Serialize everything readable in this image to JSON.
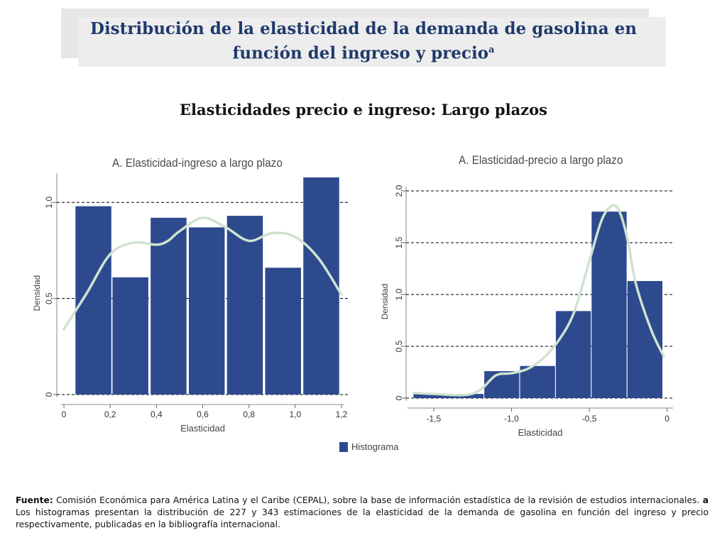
{
  "header": {
    "title": "Distribución de la elasticidad de la demanda de gasolina en función del ingreso y precio",
    "title_sup": "a",
    "subtitle": "Elasticidades precio e ingreso: Largo plazos"
  },
  "colors": {
    "bar": "#2e4a8f",
    "curve": "#cfe3cf",
    "grid": "#000000"
  },
  "chart_data": [
    {
      "type": "bar",
      "title": "A. Elasticidad-ingreso a largo plazo",
      "xlabel": "Elasticidad",
      "ylabel": "Densidad",
      "xlim": [
        0,
        1.2
      ],
      "ylim": [
        0,
        1.1
      ],
      "xticks": [
        0,
        0.2,
        0.4,
        0.6,
        0.8,
        1.0,
        1.2
      ],
      "xtick_labels": [
        "0",
        "0,2",
        "0,4",
        "0,6",
        "0,8",
        "1,0",
        "1,2"
      ],
      "yticks": [
        0,
        0.5,
        1.0
      ],
      "ytick_labels": [
        "0",
        "0,5",
        "1,0"
      ],
      "gridlines_y": [
        0,
        0.5,
        1.0
      ],
      "bins": [
        {
          "x0": 0.05,
          "x1": 0.205,
          "value": 0.98
        },
        {
          "x0": 0.21,
          "x1": 0.365,
          "value": 0.61
        },
        {
          "x0": 0.375,
          "x1": 0.53,
          "value": 0.92
        },
        {
          "x0": 0.54,
          "x1": 0.695,
          "value": 0.87
        },
        {
          "x0": 0.705,
          "x1": 0.86,
          "value": 0.93
        },
        {
          "x0": 0.87,
          "x1": 1.025,
          "value": 0.66
        },
        {
          "x0": 1.035,
          "x1": 1.19,
          "value": 1.13
        }
      ],
      "density_curve": {
        "x": [
          0,
          0.1,
          0.2,
          0.3,
          0.4,
          0.45,
          0.5,
          0.6,
          0.7,
          0.8,
          0.9,
          1.0,
          1.1,
          1.2
        ],
        "y": [
          0.34,
          0.53,
          0.73,
          0.79,
          0.78,
          0.8,
          0.85,
          0.92,
          0.87,
          0.8,
          0.84,
          0.82,
          0.71,
          0.52
        ]
      },
      "legend": "Histograma"
    },
    {
      "type": "bar",
      "title": "A. Elasticidad-precio a largo plazo",
      "xlabel": "Elasticidad",
      "ylabel": "Densidad",
      "xlim": [
        -1.65,
        0.02
      ],
      "ylim": [
        0,
        2.0
      ],
      "xticks": [
        -1.5,
        -1.0,
        -0.5,
        0
      ],
      "xtick_labels": [
        "-1,5",
        "-1,0",
        "-0,5",
        "0"
      ],
      "yticks": [
        0,
        0.5,
        1.0,
        1.5,
        2.0
      ],
      "ytick_labels": [
        "0",
        "0,5",
        "1,0",
        "1,5",
        "2,0"
      ],
      "gridlines_y": [
        0,
        0.5,
        1.0,
        1.5,
        2.0
      ],
      "bins": [
        {
          "x0": -1.63,
          "x1": -1.18,
          "value": 0.04
        },
        {
          "x0": -1.175,
          "x1": -0.95,
          "value": 0.26
        },
        {
          "x0": -0.945,
          "x1": -0.72,
          "value": 0.31
        },
        {
          "x0": -0.715,
          "x1": -0.49,
          "value": 0.84
        },
        {
          "x0": -0.485,
          "x1": -0.26,
          "value": 1.8
        },
        {
          "x0": -0.255,
          "x1": -0.03,
          "value": 1.13
        }
      ],
      "density_curve": {
        "x": [
          -1.63,
          -1.5,
          -1.3,
          -1.2,
          -1.1,
          -1.0,
          -0.9,
          -0.8,
          -0.7,
          -0.6,
          -0.5,
          -0.42,
          -0.35,
          -0.3,
          -0.25,
          -0.2,
          -0.1,
          -0.02
        ],
        "y": [
          0.05,
          0.04,
          0.03,
          0.08,
          0.22,
          0.24,
          0.28,
          0.38,
          0.55,
          0.82,
          1.32,
          1.72,
          1.86,
          1.78,
          1.5,
          1.1,
          0.65,
          0.4
        ]
      }
    }
  ],
  "footnote": {
    "label": "Fuente:",
    "text1": " Comisión Económica para América Latina y el Caribe (CEPAL), sobre la base de información estadística de la revisión de estudios internacionales. ",
    "note_mark": "a",
    "text2": " Los histogramas presentan la distribución de 227 y 343 estimaciones de la elasticidad de la demanda de gasolina en función del ingreso y precio respectivamente, publicadas en la bibliografía internacional."
  }
}
